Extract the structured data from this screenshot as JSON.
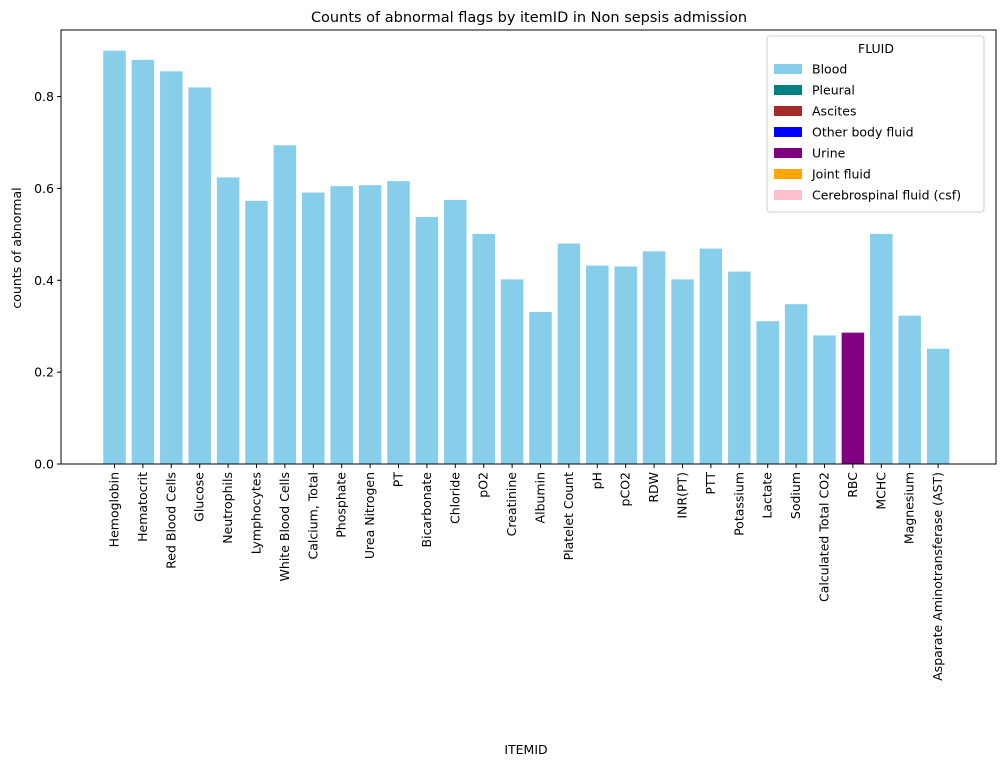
{
  "chart_data": {
    "type": "bar",
    "title": "Counts of abnormal flags by itemID in Non sepsis admission",
    "xlabel": "ITEMID",
    "ylabel": "counts of abnormal",
    "ylim": [
      0,
      0.945
    ],
    "yticks": [
      0.0,
      0.2,
      0.4,
      0.6,
      0.8
    ],
    "ytick_labels": [
      "0.0",
      "0.2",
      "0.4",
      "0.6",
      "0.8"
    ],
    "categories": [
      "Hemoglobin",
      "Hematocrit",
      "Red Blood Cells",
      "Glucose",
      "Neutrophils",
      "Lymphocytes",
      "White Blood Cells",
      "Calcium, Total",
      "Phosphate",
      "Urea Nitrogen",
      "PT",
      "Bicarbonate",
      "Chloride",
      "pO2",
      "Creatinine",
      "Albumin",
      "Platelet Count",
      "pH",
      "pCO2",
      "RDW",
      "INR(PT)",
      "PTT",
      "Potassium",
      "Lactate",
      "Sodium",
      "Calculated Total CO2",
      "RBC",
      "MCHC",
      "Magnesium",
      "Asparate Aminotransferase (AST)"
    ],
    "values": [
      0.9,
      0.88,
      0.855,
      0.82,
      0.624,
      0.573,
      0.694,
      0.591,
      0.605,
      0.607,
      0.616,
      0.538,
      0.575,
      0.501,
      0.402,
      0.331,
      0.48,
      0.432,
      0.43,
      0.463,
      0.402,
      0.469,
      0.419,
      0.311,
      0.348,
      0.28,
      0.286,
      0.501,
      0.323,
      0.251
    ],
    "fluid": [
      "Blood",
      "Blood",
      "Blood",
      "Blood",
      "Blood",
      "Blood",
      "Blood",
      "Blood",
      "Blood",
      "Blood",
      "Blood",
      "Blood",
      "Blood",
      "Blood",
      "Blood",
      "Blood",
      "Blood",
      "Blood",
      "Blood",
      "Blood",
      "Blood",
      "Blood",
      "Blood",
      "Blood",
      "Blood",
      "Blood",
      "Urine",
      "Blood",
      "Blood",
      "Blood"
    ],
    "legend": {
      "title": "FLUID",
      "position": "top-right",
      "entries": [
        {
          "name": "Blood",
          "color": "#87ceeb"
        },
        {
          "name": "Pleural",
          "color": "#008080"
        },
        {
          "name": "Ascites",
          "color": "#a52a2a"
        },
        {
          "name": "Other body fluid",
          "color": "#0000ff"
        },
        {
          "name": "Urine",
          "color": "#800080"
        },
        {
          "name": "Joint fluid",
          "color": "#ffa500"
        },
        {
          "name": "Cerebrospinal fluid (csf)",
          "color": "#ffc0cb"
        }
      ]
    },
    "grid": false
  }
}
